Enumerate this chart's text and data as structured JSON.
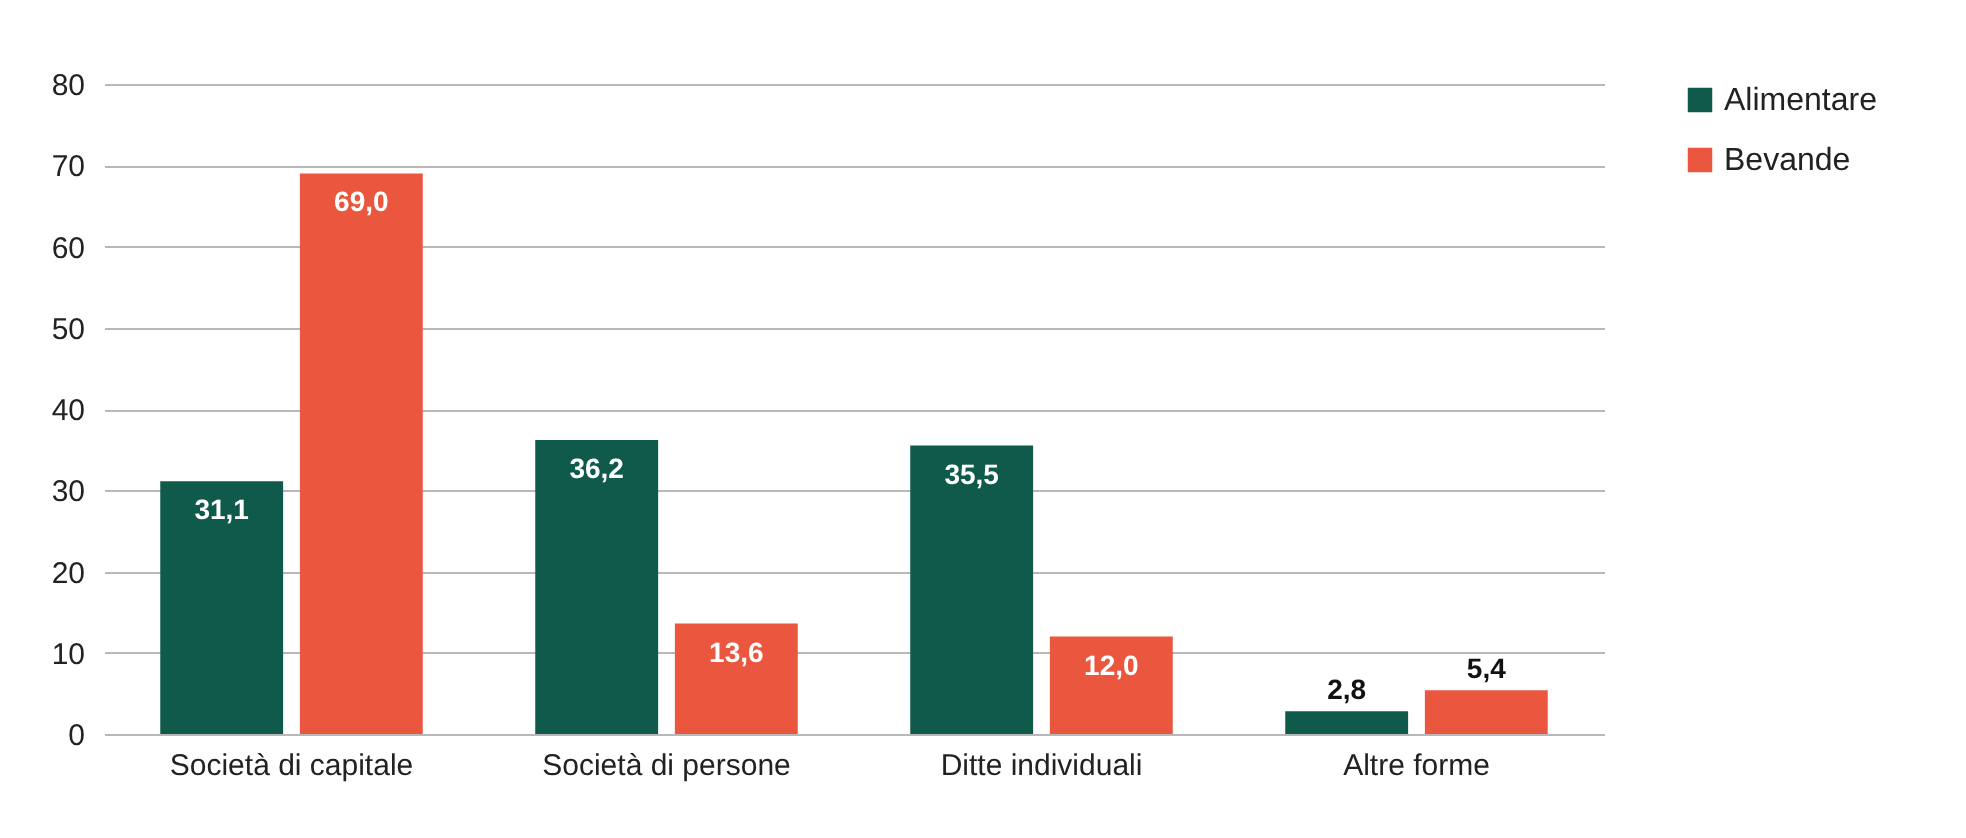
{
  "chart_data": {
    "type": "bar",
    "categories": [
      "Società di capitale",
      "Società di persone",
      "Ditte individuali",
      "Altre forme"
    ],
    "series": [
      {
        "name": "Alimentare",
        "color": "#0f5a4b",
        "values": [
          31.1,
          36.2,
          35.5,
          2.8
        ],
        "value_labels": [
          "31,1",
          "36,2",
          "35,5",
          "2,8"
        ]
      },
      {
        "name": "Bevande",
        "color": "#ea573e",
        "values": [
          69.0,
          13.6,
          12.0,
          5.4
        ],
        "value_labels": [
          "69,0",
          "13,6",
          "12,0",
          "5,4"
        ]
      }
    ],
    "ylim": [
      0,
      80
    ],
    "yticks": [
      0,
      10,
      20,
      30,
      40,
      50,
      60,
      70,
      80
    ],
    "grid": "y",
    "legend": "right"
  }
}
